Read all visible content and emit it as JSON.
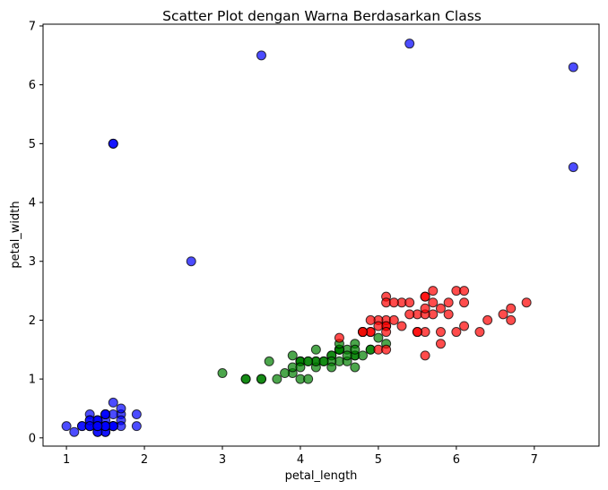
{
  "chart_data": {
    "type": "scatter",
    "title": "Scatter Plot dengan Warna Berdasarkan Class",
    "xlabel": "petal_length",
    "ylabel": "petal_width",
    "xlim": [
      0.7,
      7.83
    ],
    "ylim": [
      -0.14,
      7.03
    ],
    "xticks": [
      "1",
      "2",
      "3",
      "4",
      "5",
      "6",
      "7"
    ],
    "yticks": [
      "0",
      "1",
      "2",
      "3",
      "4",
      "5",
      "6",
      "7"
    ],
    "grid": false,
    "legend": "none",
    "series": [
      {
        "color": "#0000ff",
        "points": [
          [
            1.4,
            0.2
          ],
          [
            1.4,
            0.2
          ],
          [
            1.3,
            0.2
          ],
          [
            1.5,
            0.2
          ],
          [
            1.4,
            0.2
          ],
          [
            1.7,
            0.4
          ],
          [
            1.4,
            0.3
          ],
          [
            1.5,
            0.2
          ],
          [
            1.4,
            0.2
          ],
          [
            1.5,
            0.1
          ],
          [
            1.5,
            0.2
          ],
          [
            1.6,
            0.2
          ],
          [
            1.4,
            0.1
          ],
          [
            1.1,
            0.1
          ],
          [
            1.2,
            0.2
          ],
          [
            1.5,
            0.4
          ],
          [
            1.3,
            0.4
          ],
          [
            1.4,
            0.3
          ],
          [
            1.7,
            0.3
          ],
          [
            1.5,
            0.3
          ],
          [
            1.7,
            0.2
          ],
          [
            1.5,
            0.4
          ],
          [
            1.0,
            0.2
          ],
          [
            1.7,
            0.5
          ],
          [
            1.9,
            0.2
          ],
          [
            1.6,
            0.2
          ],
          [
            1.6,
            0.4
          ],
          [
            1.5,
            0.2
          ],
          [
            1.4,
            0.2
          ],
          [
            1.6,
            0.2
          ],
          [
            1.6,
            0.2
          ],
          [
            1.5,
            0.4
          ],
          [
            1.5,
            0.1
          ],
          [
            1.4,
            0.2
          ],
          [
            1.5,
            0.2
          ],
          [
            1.2,
            0.2
          ],
          [
            1.3,
            0.2
          ],
          [
            1.4,
            0.1
          ],
          [
            1.3,
            0.2
          ],
          [
            1.5,
            0.2
          ],
          [
            1.3,
            0.3
          ],
          [
            1.3,
            0.3
          ],
          [
            1.3,
            0.2
          ],
          [
            1.6,
            0.6
          ],
          [
            1.9,
            0.4
          ],
          [
            1.4,
            0.3
          ],
          [
            1.6,
            0.2
          ],
          [
            1.4,
            0.2
          ],
          [
            1.5,
            0.2
          ],
          [
            1.4,
            0.2
          ],
          [
            1.6,
            5.0
          ],
          [
            1.6,
            5.0
          ],
          [
            2.6,
            3.0
          ],
          [
            3.5,
            6.5
          ],
          [
            5.4,
            6.7
          ],
          [
            7.5,
            6.3
          ],
          [
            7.5,
            4.6
          ]
        ]
      },
      {
        "color": "#008000",
        "points": [
          [
            4.7,
            1.4
          ],
          [
            4.5,
            1.5
          ],
          [
            4.9,
            1.5
          ],
          [
            4.0,
            1.3
          ],
          [
            4.6,
            1.5
          ],
          [
            4.5,
            1.3
          ],
          [
            4.7,
            1.6
          ],
          [
            3.3,
            1.0
          ],
          [
            4.6,
            1.3
          ],
          [
            3.9,
            1.4
          ],
          [
            3.5,
            1.0
          ],
          [
            4.2,
            1.5
          ],
          [
            4.0,
            1.0
          ],
          [
            4.7,
            1.4
          ],
          [
            3.6,
            1.3
          ],
          [
            4.4,
            1.4
          ],
          [
            4.5,
            1.5
          ],
          [
            4.1,
            1.0
          ],
          [
            4.5,
            1.5
          ],
          [
            3.9,
            1.1
          ],
          [
            4.8,
            1.8
          ],
          [
            4.0,
            1.3
          ],
          [
            4.9,
            1.5
          ],
          [
            4.7,
            1.2
          ],
          [
            4.3,
            1.3
          ],
          [
            4.4,
            1.4
          ],
          [
            4.8,
            1.4
          ],
          [
            5.0,
            1.7
          ],
          [
            4.5,
            1.5
          ],
          [
            3.5,
            1.0
          ],
          [
            3.8,
            1.1
          ],
          [
            3.7,
            1.0
          ],
          [
            3.9,
            1.2
          ],
          [
            5.1,
            1.6
          ],
          [
            4.5,
            1.5
          ],
          [
            4.5,
            1.6
          ],
          [
            4.7,
            1.5
          ],
          [
            4.4,
            1.3
          ],
          [
            4.1,
            1.3
          ],
          [
            4.0,
            1.3
          ],
          [
            4.4,
            1.2
          ],
          [
            4.6,
            1.4
          ],
          [
            4.0,
            1.2
          ],
          [
            3.3,
            1.0
          ],
          [
            4.2,
            1.3
          ],
          [
            4.2,
            1.2
          ],
          [
            4.2,
            1.3
          ],
          [
            4.3,
            1.3
          ],
          [
            3.0,
            1.1
          ],
          [
            4.1,
            1.3
          ]
        ]
      },
      {
        "color": "#ff0000",
        "points": [
          [
            6.0,
            2.5
          ],
          [
            5.1,
            1.9
          ],
          [
            5.9,
            2.1
          ],
          [
            5.6,
            1.8
          ],
          [
            5.8,
            2.2
          ],
          [
            6.6,
            2.1
          ],
          [
            4.5,
            1.7
          ],
          [
            6.3,
            1.8
          ],
          [
            5.8,
            1.8
          ],
          [
            6.1,
            2.5
          ],
          [
            5.1,
            2.0
          ],
          [
            5.3,
            1.9
          ],
          [
            5.5,
            2.1
          ],
          [
            5.0,
            2.0
          ],
          [
            5.1,
            2.4
          ],
          [
            5.3,
            2.3
          ],
          [
            5.5,
            1.8
          ],
          [
            6.7,
            2.2
          ],
          [
            6.9,
            2.3
          ],
          [
            5.0,
            1.5
          ],
          [
            5.7,
            2.3
          ],
          [
            4.9,
            2.0
          ],
          [
            6.7,
            2.0
          ],
          [
            4.9,
            1.8
          ],
          [
            5.7,
            2.1
          ],
          [
            6.0,
            1.8
          ],
          [
            4.8,
            1.8
          ],
          [
            4.9,
            1.8
          ],
          [
            5.6,
            2.1
          ],
          [
            5.8,
            1.6
          ],
          [
            6.1,
            1.9
          ],
          [
            6.4,
            2.0
          ],
          [
            5.6,
            2.2
          ],
          [
            5.1,
            1.5
          ],
          [
            5.6,
            1.4
          ],
          [
            6.1,
            2.3
          ],
          [
            5.6,
            2.4
          ],
          [
            5.5,
            1.8
          ],
          [
            4.8,
            1.8
          ],
          [
            5.4,
            2.1
          ],
          [
            5.6,
            2.4
          ],
          [
            5.1,
            2.3
          ],
          [
            5.1,
            1.9
          ],
          [
            5.9,
            2.3
          ],
          [
            5.7,
            2.5
          ],
          [
            5.2,
            2.3
          ],
          [
            5.0,
            1.9
          ],
          [
            5.2,
            2.0
          ],
          [
            5.4,
            2.3
          ],
          [
            5.1,
            1.8
          ]
        ]
      }
    ]
  }
}
